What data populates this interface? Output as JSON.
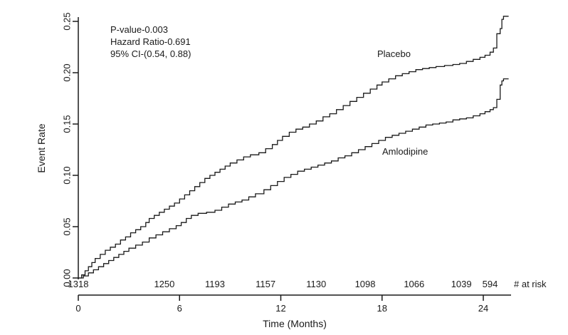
{
  "chart_data": {
    "type": "line",
    "subtype": "kaplan-meier-step",
    "title": "",
    "xlabel": "Time (Months)",
    "ylabel": "Event Rate",
    "xlim": [
      0,
      25.6
    ],
    "ylim": [
      0,
      0.25
    ],
    "xticks": [
      0,
      6,
      12,
      18,
      24
    ],
    "yticks": [
      0.0,
      0.05,
      0.1,
      0.15,
      0.2,
      0.25
    ],
    "grid": false,
    "legend": "inline-labels",
    "line_color": "#1a1a1a",
    "annotations": [
      "P-value-0.003",
      "Hazard Ratio-0.691",
      "95% CI-(0.54, 0.88)"
    ],
    "series": [
      {
        "name": "Placebo",
        "points": [
          [
            0,
            0
          ],
          [
            0.2,
            0.003
          ],
          [
            0.4,
            0.007
          ],
          [
            0.6,
            0.011
          ],
          [
            0.8,
            0.015
          ],
          [
            1.0,
            0.019
          ],
          [
            1.3,
            0.023
          ],
          [
            1.6,
            0.027
          ],
          [
            1.9,
            0.03
          ],
          [
            2.2,
            0.033
          ],
          [
            2.5,
            0.037
          ],
          [
            2.8,
            0.04
          ],
          [
            3.1,
            0.044
          ],
          [
            3.4,
            0.047
          ],
          [
            3.7,
            0.05
          ],
          [
            4.0,
            0.054
          ],
          [
            4.2,
            0.058
          ],
          [
            4.5,
            0.061
          ],
          [
            4.8,
            0.064
          ],
          [
            5.1,
            0.067
          ],
          [
            5.4,
            0.07
          ],
          [
            5.7,
            0.073
          ],
          [
            6.0,
            0.077
          ],
          [
            6.3,
            0.081
          ],
          [
            6.6,
            0.085
          ],
          [
            6.9,
            0.089
          ],
          [
            7.2,
            0.093
          ],
          [
            7.5,
            0.097
          ],
          [
            7.8,
            0.1
          ],
          [
            8.1,
            0.103
          ],
          [
            8.4,
            0.106
          ],
          [
            8.7,
            0.109
          ],
          [
            9.0,
            0.112
          ],
          [
            9.4,
            0.115
          ],
          [
            9.8,
            0.118
          ],
          [
            10.2,
            0.12
          ],
          [
            10.7,
            0.122
          ],
          [
            11.1,
            0.126
          ],
          [
            11.5,
            0.13
          ],
          [
            11.8,
            0.134
          ],
          [
            12.1,
            0.138
          ],
          [
            12.5,
            0.142
          ],
          [
            12.9,
            0.145
          ],
          [
            13.3,
            0.147
          ],
          [
            13.7,
            0.15
          ],
          [
            14.1,
            0.153
          ],
          [
            14.5,
            0.157
          ],
          [
            14.9,
            0.16
          ],
          [
            15.3,
            0.164
          ],
          [
            15.7,
            0.168
          ],
          [
            16.1,
            0.172
          ],
          [
            16.5,
            0.176
          ],
          [
            16.9,
            0.18
          ],
          [
            17.3,
            0.184
          ],
          [
            17.7,
            0.188
          ],
          [
            18.0,
            0.191
          ],
          [
            18.4,
            0.194
          ],
          [
            18.8,
            0.197
          ],
          [
            19.2,
            0.199
          ],
          [
            19.6,
            0.201
          ],
          [
            20.0,
            0.203
          ],
          [
            20.4,
            0.204
          ],
          [
            20.8,
            0.205
          ],
          [
            21.2,
            0.206
          ],
          [
            21.7,
            0.207
          ],
          [
            22.2,
            0.208
          ],
          [
            22.6,
            0.209
          ],
          [
            23.0,
            0.211
          ],
          [
            23.4,
            0.213
          ],
          [
            23.8,
            0.215
          ],
          [
            24.1,
            0.217
          ],
          [
            24.4,
            0.22
          ],
          [
            24.6,
            0.224
          ],
          [
            24.8,
            0.238
          ],
          [
            25.0,
            0.243
          ],
          [
            25.1,
            0.252
          ],
          [
            25.2,
            0.255
          ],
          [
            25.5,
            0.255
          ]
        ]
      },
      {
        "name": "Amlodipine",
        "points": [
          [
            0,
            0
          ],
          [
            0.3,
            0.002
          ],
          [
            0.6,
            0.005
          ],
          [
            0.9,
            0.008
          ],
          [
            1.2,
            0.011
          ],
          [
            1.5,
            0.014
          ],
          [
            1.8,
            0.017
          ],
          [
            2.1,
            0.02
          ],
          [
            2.4,
            0.023
          ],
          [
            2.7,
            0.026
          ],
          [
            3.0,
            0.029
          ],
          [
            3.4,
            0.032
          ],
          [
            3.8,
            0.035
          ],
          [
            4.2,
            0.039
          ],
          [
            4.6,
            0.042
          ],
          [
            5.0,
            0.045
          ],
          [
            5.4,
            0.048
          ],
          [
            5.8,
            0.051
          ],
          [
            6.1,
            0.054
          ],
          [
            6.4,
            0.058
          ],
          [
            6.7,
            0.061
          ],
          [
            7.1,
            0.063
          ],
          [
            7.6,
            0.064
          ],
          [
            8.1,
            0.066
          ],
          [
            8.5,
            0.069
          ],
          [
            8.9,
            0.072
          ],
          [
            9.3,
            0.074
          ],
          [
            9.7,
            0.076
          ],
          [
            10.1,
            0.079
          ],
          [
            10.5,
            0.082
          ],
          [
            11.0,
            0.086
          ],
          [
            11.4,
            0.09
          ],
          [
            11.8,
            0.094
          ],
          [
            12.2,
            0.098
          ],
          [
            12.6,
            0.101
          ],
          [
            13.0,
            0.104
          ],
          [
            13.4,
            0.106
          ],
          [
            13.8,
            0.108
          ],
          [
            14.2,
            0.11
          ],
          [
            14.6,
            0.112
          ],
          [
            15.0,
            0.114
          ],
          [
            15.4,
            0.117
          ],
          [
            15.8,
            0.119
          ],
          [
            16.2,
            0.122
          ],
          [
            16.6,
            0.125
          ],
          [
            17.0,
            0.128
          ],
          [
            17.4,
            0.131
          ],
          [
            17.8,
            0.134
          ],
          [
            18.2,
            0.137
          ],
          [
            18.6,
            0.139
          ],
          [
            19.0,
            0.141
          ],
          [
            19.4,
            0.143
          ],
          [
            19.8,
            0.145
          ],
          [
            20.2,
            0.147
          ],
          [
            20.6,
            0.149
          ],
          [
            21.0,
            0.15
          ],
          [
            21.4,
            0.151
          ],
          [
            21.8,
            0.152
          ],
          [
            22.2,
            0.154
          ],
          [
            22.6,
            0.155
          ],
          [
            23.0,
            0.156
          ],
          [
            23.4,
            0.158
          ],
          [
            23.8,
            0.16
          ],
          [
            24.1,
            0.162
          ],
          [
            24.4,
            0.164
          ],
          [
            24.6,
            0.166
          ],
          [
            24.8,
            0.174
          ],
          [
            25.0,
            0.188
          ],
          [
            25.1,
            0.192
          ],
          [
            25.2,
            0.194
          ],
          [
            25.5,
            0.194
          ]
        ]
      }
    ],
    "at_risk": {
      "label": "# at risk",
      "values": [
        1318,
        1250,
        1193,
        1157,
        1130,
        1098,
        1066,
        1039,
        594
      ]
    }
  }
}
